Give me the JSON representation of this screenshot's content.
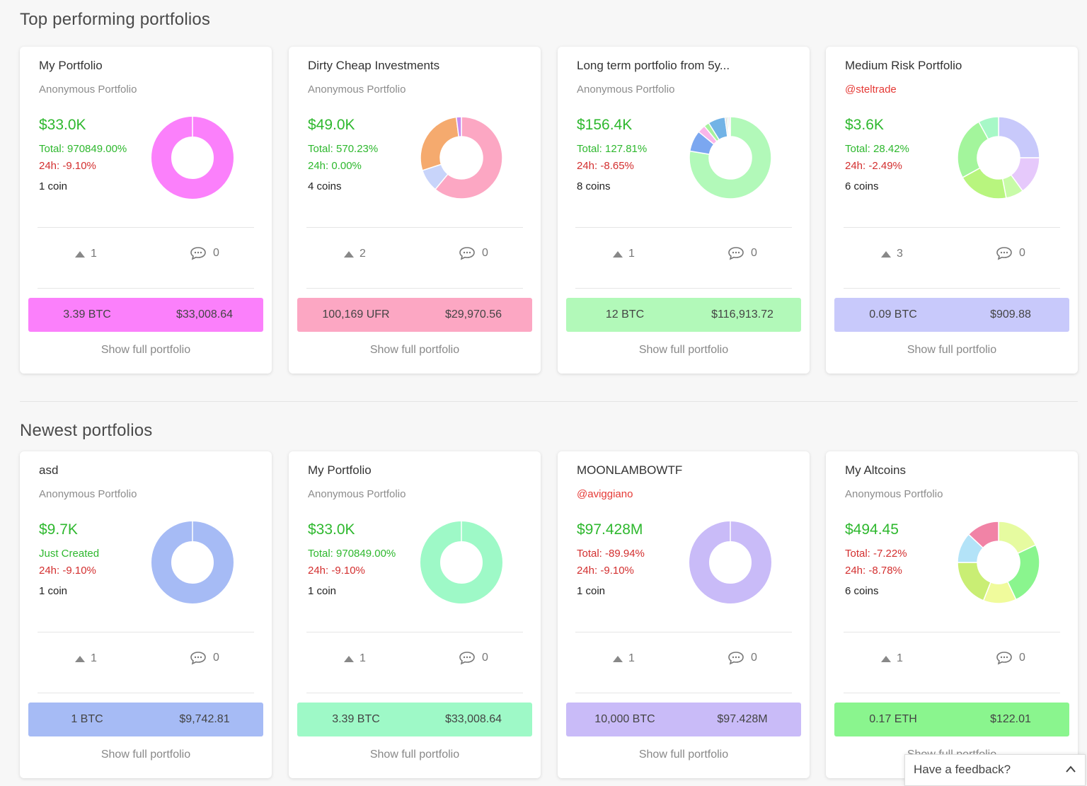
{
  "sections": [
    {
      "title": "Top performing portfolios",
      "cards": [
        {
          "name": "My Portfolio",
          "owner": "Anonymous Portfolio",
          "owner_is_user": false,
          "value": "$33.0K",
          "total": "Total: 970849.00%",
          "total_sign": "pos",
          "h24": "24h: -9.10%",
          "h24_sign": "neg",
          "coins": "1 coin",
          "votes": "1",
          "comments": "0",
          "holding_amount": "3.39 BTC",
          "holding_value": "$33,008.64",
          "bar_color": "#fb80fb",
          "show_label": "Show full portfolio",
          "chart_data": {
            "type": "pie",
            "values": [
              100
            ],
            "colors": [
              "#fb80fb"
            ]
          }
        },
        {
          "name": "Dirty Cheap Investments",
          "owner": "Anonymous Portfolio",
          "owner_is_user": false,
          "value": "$49.0K",
          "total": "Total: 570.23%",
          "total_sign": "pos",
          "h24": "24h: 0.00%",
          "h24_sign": "pos",
          "coins": "4 coins",
          "votes": "2",
          "comments": "0",
          "holding_amount": "100,169 UFR",
          "holding_value": "$29,970.56",
          "bar_color": "#fca7c3",
          "show_label": "Show full portfolio",
          "chart_data": {
            "type": "pie",
            "values": [
              61,
              9,
              28,
              2
            ],
            "colors": [
              "#fca7c3",
              "#c8d4fa",
              "#f5aa6e",
              "#c68df0"
            ]
          }
        },
        {
          "name": "Long term portfolio from 5y...",
          "owner": "Anonymous Portfolio",
          "owner_is_user": false,
          "value": "$156.4K",
          "total": "Total: 127.81%",
          "total_sign": "pos",
          "h24": "24h: -8.65%",
          "h24_sign": "neg",
          "coins": "8 coins",
          "votes": "1",
          "comments": "0",
          "holding_amount": "12 BTC",
          "holding_value": "$116,913.72",
          "bar_color": "#b2f9b9",
          "show_label": "Show full portfolio",
          "chart_data": {
            "type": "pie",
            "values": [
              74.5,
              8,
              3,
              2,
              6.5,
              0.8,
              0.6,
              0.6
            ],
            "colors": [
              "#b2f9b9",
              "#7ba7f0",
              "#fbb5ea",
              "#a6f29d",
              "#72b3e6",
              "#d9d9d9",
              "#c0e8c0",
              "#e6d0f5"
            ]
          }
        },
        {
          "name": "Medium Risk Portfolio",
          "owner": "@steltrade",
          "owner_is_user": true,
          "value": "$3.6K",
          "total": "Total: 28.42%",
          "total_sign": "pos",
          "h24": "24h: -2.49%",
          "h24_sign": "neg",
          "coins": "6 coins",
          "votes": "3",
          "comments": "0",
          "holding_amount": "0.09 BTC",
          "holding_value": "$909.88",
          "bar_color": "#c8c9fb",
          "show_label": "Show full portfolio",
          "chart_data": {
            "type": "pie",
            "values": [
              25,
              15,
              7,
              20,
              25,
              8
            ],
            "colors": [
              "#c8c9fb",
              "#e6c9fb",
              "#c8fba8",
              "#b8f57e",
              "#a3f59c",
              "#a7f8c7"
            ]
          }
        }
      ]
    },
    {
      "title": "Newest portfolios",
      "cards": [
        {
          "name": "asd",
          "owner": "Anonymous Portfolio",
          "owner_is_user": false,
          "value": "$9.7K",
          "total": "Just Created",
          "total_sign": "pos",
          "h24": "24h: -9.10%",
          "h24_sign": "neg",
          "coins": "1 coin",
          "votes": "1",
          "comments": "0",
          "holding_amount": "1 BTC",
          "holding_value": "$9,742.81",
          "bar_color": "#a6bbf5",
          "show_label": "Show full portfolio",
          "chart_data": {
            "type": "pie",
            "values": [
              100
            ],
            "colors": [
              "#a6bbf5"
            ]
          }
        },
        {
          "name": "My Portfolio",
          "owner": "Anonymous Portfolio",
          "owner_is_user": false,
          "value": "$33.0K",
          "total": "Total: 970849.00%",
          "total_sign": "pos",
          "h24": "24h: -9.10%",
          "h24_sign": "neg",
          "coins": "1 coin",
          "votes": "1",
          "comments": "0",
          "holding_amount": "3.39 BTC",
          "holding_value": "$33,008.64",
          "bar_color": "#9ef9c7",
          "show_label": "Show full portfolio",
          "chart_data": {
            "type": "pie",
            "values": [
              100
            ],
            "colors": [
              "#9ef9c7"
            ]
          }
        },
        {
          "name": "MOONLAMBOWTF",
          "owner": "@aviggiano",
          "owner_is_user": true,
          "value": "$97.428M",
          "total": "Total: -89.94%",
          "total_sign": "neg",
          "h24": "24h: -9.10%",
          "h24_sign": "neg",
          "coins": "1 coin",
          "votes": "1",
          "comments": "0",
          "holding_amount": "10,000 BTC",
          "holding_value": "$97.428M",
          "bar_color": "#c9bbf8",
          "show_label": "Show full portfolio",
          "chart_data": {
            "type": "pie",
            "values": [
              100
            ],
            "colors": [
              "#c9bbf8"
            ]
          }
        },
        {
          "name": "My Altcoins",
          "owner": "Anonymous Portfolio",
          "owner_is_user": false,
          "value": "$494.45",
          "total": "Total: -7.22%",
          "total_sign": "neg",
          "h24": "24h: -8.78%",
          "h24_sign": "neg",
          "coins": "6 coins",
          "votes": "1",
          "comments": "0",
          "holding_amount": "0.17 ETH",
          "holding_value": "$122.01",
          "bar_color": "#8af58e",
          "show_label": "Show full portfolio",
          "chart_data": {
            "type": "pie",
            "values": [
              18,
              25,
              13,
              19,
              12,
              13
            ],
            "colors": [
              "#e6fba0",
              "#8af58e",
              "#f0fb9c",
              "#c9ee74",
              "#b3e3f8",
              "#f183a6"
            ]
          }
        }
      ]
    }
  ],
  "feedback": {
    "label": "Have a feedback?",
    "icon": "chevron-up-icon"
  }
}
